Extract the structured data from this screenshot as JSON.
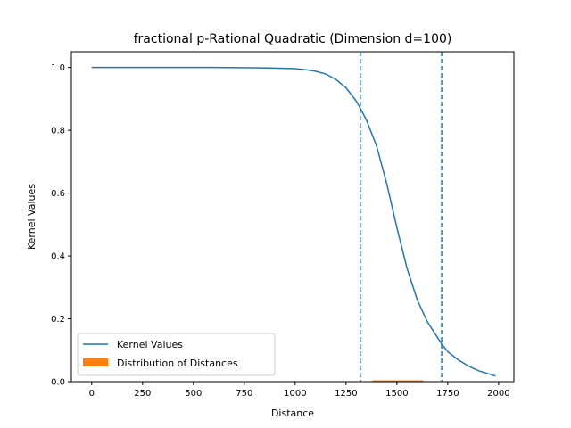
{
  "chart_data": {
    "type": "line",
    "title": "fractional p-Rational Quadratic (Dimension d=100)",
    "xlabel": "Distance",
    "ylabel": "Kernel Values",
    "xlim": [
      -100,
      2075
    ],
    "ylim": [
      0,
      1.05
    ],
    "xticks": [
      "0",
      "250",
      "500",
      "750",
      "1000",
      "1250",
      "1500",
      "1750",
      "2000"
    ],
    "xtick_values": [
      0,
      250,
      500,
      750,
      1000,
      1250,
      1500,
      1750,
      2000
    ],
    "yticks": [
      "0.0",
      "0.2",
      "0.4",
      "0.6",
      "0.8",
      "1.0"
    ],
    "ytick_values": [
      0.0,
      0.2,
      0.4,
      0.6,
      0.8,
      1.0
    ],
    "grid": false,
    "legend_position": "lower-left",
    "series": [
      {
        "name": "Kernel Values",
        "color": "#1f77b4",
        "x": [
          0,
          200,
          400,
          600,
          800,
          900,
          1000,
          1050,
          1100,
          1150,
          1200,
          1250,
          1300,
          1320,
          1350,
          1400,
          1450,
          1500,
          1550,
          1600,
          1650,
          1700,
          1720,
          1750,
          1800,
          1850,
          1900,
          1950,
          1985
        ],
        "y": [
          1.0,
          1.0,
          1.0,
          1.0,
          0.999,
          0.998,
          0.996,
          0.993,
          0.988,
          0.979,
          0.962,
          0.935,
          0.893,
          0.87,
          0.833,
          0.75,
          0.63,
          0.49,
          0.36,
          0.26,
          0.19,
          0.14,
          0.12,
          0.095,
          0.07,
          0.05,
          0.035,
          0.025,
          0.018
        ]
      }
    ],
    "vlines": {
      "color": "#1f77b4",
      "x": [
        1320,
        1720
      ]
    },
    "distribution": {
      "name": "Distribution of Distances",
      "color": "#ff7f0e",
      "x_range": [
        1380,
        1630
      ],
      "height": 0.004
    }
  }
}
